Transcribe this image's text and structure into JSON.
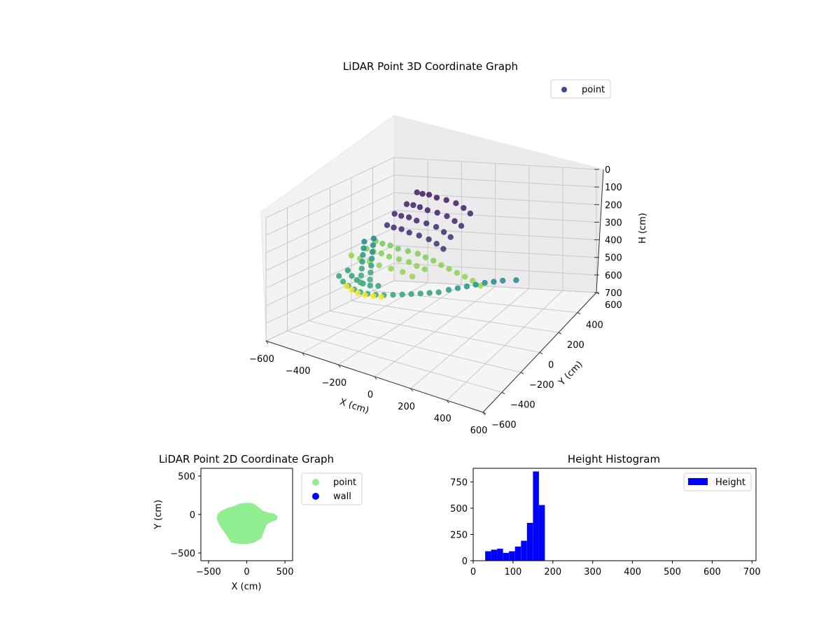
{
  "chart_data": [
    {
      "type": "scatter",
      "projection": "3d",
      "title": "LiDAR Point 3D Coordinate Graph",
      "xlabel": "X (cm)",
      "ylabel": "Y (cm)",
      "zlabel": "H (cm)",
      "xlim": [
        -600,
        600
      ],
      "ylim": [
        -600,
        600
      ],
      "zlim": [
        0,
        700
      ],
      "z_inverted": true,
      "x_ticks": [
        "−600",
        "−400",
        "−200",
        "0",
        "200",
        "400",
        "600"
      ],
      "y_ticks": [
        "−600",
        "−400",
        "−200",
        "0",
        "200",
        "400",
        "600"
      ],
      "z_ticks": [
        "0",
        "100",
        "200",
        "300",
        "400",
        "500",
        "600",
        "700"
      ],
      "colormap": "viridis",
      "grid": true,
      "legend": {
        "position": "top-right",
        "entries": [
          {
            "label": "point",
            "color": "#3b4a8c"
          }
        ]
      },
      "points": [
        [
          -250,
          250,
          50,
          1
        ],
        [
          -200,
          220,
          40,
          1
        ],
        [
          -150,
          200,
          30,
          1
        ],
        [
          -100,
          190,
          35,
          1
        ],
        [
          -50,
          200,
          45,
          1
        ],
        [
          0,
          210,
          60,
          1
        ],
        [
          50,
          200,
          75,
          1
        ],
        [
          100,
          180,
          90,
          1
        ],
        [
          -250,
          150,
          80,
          1
        ],
        [
          -200,
          130,
          70,
          1
        ],
        [
          -150,
          110,
          65,
          1
        ],
        [
          -100,
          100,
          70,
          1
        ],
        [
          -50,
          110,
          80,
          1
        ],
        [
          0,
          120,
          95,
          1
        ],
        [
          50,
          110,
          110,
          1
        ],
        [
          100,
          90,
          120,
          1
        ],
        [
          -260,
          50,
          100,
          1
        ],
        [
          -210,
          30,
          95,
          1
        ],
        [
          -160,
          20,
          90,
          1
        ],
        [
          -110,
          10,
          95,
          1
        ],
        [
          -60,
          20,
          105,
          1
        ],
        [
          -10,
          30,
          120,
          1
        ],
        [
          40,
          20,
          135,
          1
        ],
        [
          90,
          0,
          145,
          1
        ],
        [
          -250,
          -40,
          130,
          1
        ],
        [
          -200,
          -60,
          125,
          1
        ],
        [
          -150,
          -70,
          120,
          1
        ],
        [
          -100,
          -80,
          125,
          1
        ],
        [
          -50,
          -70,
          135,
          1
        ],
        [
          0,
          -60,
          150,
          1
        ],
        [
          50,
          -70,
          160,
          1
        ],
        [
          100,
          -90,
          170,
          1
        ],
        [
          -380,
          -40,
          250,
          2
        ],
        [
          -360,
          -80,
          270,
          2
        ],
        [
          -340,
          -120,
          290,
          2
        ],
        [
          -320,
          -160,
          310,
          2
        ],
        [
          -300,
          -200,
          330,
          2
        ],
        [
          -280,
          -240,
          350,
          2
        ],
        [
          -260,
          -280,
          370,
          2
        ],
        [
          -350,
          0,
          240,
          2
        ],
        [
          -330,
          -40,
          260,
          2
        ],
        [
          -310,
          -80,
          280,
          2
        ],
        [
          -290,
          -120,
          300,
          2
        ],
        [
          -270,
          -160,
          320,
          2
        ],
        [
          -250,
          -200,
          340,
          2
        ],
        [
          -230,
          -240,
          360,
          2
        ],
        [
          -250,
          -150,
          180,
          3
        ],
        [
          -200,
          -170,
          175,
          3
        ],
        [
          -150,
          -180,
          170,
          3
        ],
        [
          -100,
          -190,
          172,
          3
        ],
        [
          -50,
          -180,
          178,
          3
        ],
        [
          0,
          -170,
          185,
          3
        ],
        [
          50,
          -180,
          190,
          3
        ],
        [
          100,
          -190,
          192,
          3
        ],
        [
          -260,
          -220,
          200,
          3
        ],
        [
          -210,
          -240,
          195,
          3
        ],
        [
          -160,
          -250,
          190,
          3
        ],
        [
          -110,
          -260,
          192,
          3
        ],
        [
          -60,
          -250,
          198,
          3
        ],
        [
          -10,
          -240,
          205,
          3
        ],
        [
          40,
          -250,
          210,
          3
        ],
        [
          90,
          -260,
          212,
          3
        ],
        [
          -300,
          -300,
          220,
          3
        ],
        [
          -240,
          -320,
          215,
          3
        ],
        [
          -180,
          -330,
          210,
          3
        ],
        [
          -120,
          -340,
          212,
          3
        ],
        [
          -60,
          -330,
          218,
          3
        ],
        [
          0,
          -320,
          225,
          3
        ],
        [
          60,
          -330,
          230,
          3
        ],
        [
          150,
          -200,
          200,
          3
        ],
        [
          200,
          -210,
          205,
          3
        ],
        [
          250,
          -220,
          210,
          3
        ],
        [
          300,
          -230,
          215,
          3
        ],
        [
          350,
          -240,
          220,
          3
        ],
        [
          400,
          -250,
          230,
          3
        ],
        [
          -340,
          -350,
          330,
          2
        ],
        [
          -300,
          -380,
          340,
          2
        ],
        [
          -260,
          -400,
          345,
          2
        ],
        [
          -220,
          -410,
          350,
          2
        ],
        [
          -180,
          -420,
          350,
          2
        ],
        [
          -140,
          -420,
          348,
          2
        ],
        [
          -100,
          -410,
          345,
          2
        ],
        [
          -60,
          -400,
          340,
          2
        ],
        [
          -20,
          -380,
          335,
          2
        ],
        [
          20,
          -360,
          330,
          2
        ],
        [
          60,
          -340,
          325,
          2
        ],
        [
          100,
          -320,
          320,
          2
        ],
        [
          140,
          -300,
          315,
          2
        ],
        [
          180,
          -280,
          310,
          2
        ],
        [
          -320,
          -300,
          310,
          2
        ],
        [
          -280,
          -330,
          320,
          2
        ],
        [
          -240,
          -350,
          325,
          2
        ],
        [
          -200,
          -360,
          330,
          2
        ],
        [
          -160,
          -360,
          330,
          2
        ],
        [
          -120,
          -350,
          325,
          2
        ],
        [
          220,
          -250,
          300,
          2
        ],
        [
          260,
          -230,
          290,
          2
        ],
        [
          300,
          -210,
          280,
          2
        ],
        [
          340,
          -190,
          270,
          2
        ],
        [
          380,
          -170,
          260,
          2
        ],
        [
          420,
          -150,
          255,
          2
        ],
        [
          460,
          -130,
          250,
          2
        ],
        [
          520,
          -100,
          250,
          2
        ],
        [
          -280,
          -380,
          360,
          3
        ],
        [
          -240,
          -400,
          362,
          3
        ],
        [
          -200,
          -410,
          365,
          3
        ],
        [
          -160,
          -410,
          365,
          3
        ],
        [
          -120,
          -400,
          362,
          3
        ],
        [
          -80,
          -390,
          360,
          3
        ]
      ]
    },
    {
      "type": "scatter",
      "title": "LiDAR Point 2D Coordinate Graph",
      "xlabel": "X (cm)",
      "ylabel": "Y (cm)",
      "xlim": [
        -600,
        600
      ],
      "ylim": [
        -600,
        600
      ],
      "x_ticks": [
        "−500",
        "0",
        "500"
      ],
      "y_ticks": [
        "500",
        "0",
        "−500"
      ],
      "legend": {
        "position": "outside-right",
        "entries": [
          {
            "label": "point",
            "color": "#90ee90"
          },
          {
            "label": "wall",
            "color": "#0000ff"
          }
        ]
      },
      "point_region": [
        [
          -320,
          40
        ],
        [
          -250,
          70
        ],
        [
          -150,
          100
        ],
        [
          -80,
          130
        ],
        [
          0,
          140
        ],
        [
          80,
          130
        ],
        [
          140,
          90
        ],
        [
          200,
          40
        ],
        [
          280,
          10
        ],
        [
          350,
          0
        ],
        [
          390,
          -30
        ],
        [
          380,
          -60
        ],
        [
          320,
          -80
        ],
        [
          250,
          -120
        ],
        [
          180,
          -300
        ],
        [
          100,
          -350
        ],
        [
          0,
          -370
        ],
        [
          -100,
          -370
        ],
        [
          -200,
          -350
        ],
        [
          -260,
          -250
        ],
        [
          -320,
          -170
        ],
        [
          -360,
          -100
        ],
        [
          -380,
          -40
        ],
        [
          -360,
          10
        ]
      ]
    },
    {
      "type": "bar",
      "subtype": "histogram",
      "title": "Height Histogram",
      "xlim": [
        0,
        710
      ],
      "ylim": [
        0,
        880
      ],
      "x_ticks": [
        "0",
        "100",
        "200",
        "300",
        "400",
        "500",
        "600",
        "700"
      ],
      "y_ticks": [
        "0",
        "250",
        "500",
        "750"
      ],
      "legend": {
        "position": "top-right",
        "entries": [
          {
            "label": "Height",
            "color": "#0000ff"
          }
        ]
      },
      "series": [
        {
          "name": "Height",
          "bins": [
            [
              30,
              45,
              90
            ],
            [
              45,
              60,
              105
            ],
            [
              60,
              75,
              115
            ],
            [
              75,
              90,
              75
            ],
            [
              90,
              105,
              90
            ],
            [
              105,
              120,
              135
            ],
            [
              120,
              135,
              190
            ],
            [
              135,
              150,
              360
            ],
            [
              150,
              165,
              850
            ],
            [
              165,
              180,
              530
            ],
            [
              180,
              200,
              0
            ]
          ]
        }
      ]
    }
  ]
}
